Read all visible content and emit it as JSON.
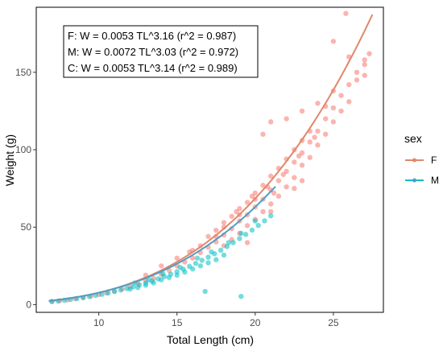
{
  "chart_data": {
    "type": "scatter",
    "title": "",
    "xlabel": "Total Length (cm)",
    "ylabel": "Weight (g)",
    "xlim": [
      6,
      28.2
    ],
    "ylim": [
      -5,
      192
    ],
    "x_ticks": [
      10,
      15,
      20,
      25
    ],
    "y_ticks": [
      0,
      50,
      100,
      150
    ],
    "grid": false,
    "legend": {
      "title": "sex",
      "position": "right",
      "items": [
        {
          "label": "F",
          "color": "#f8766d"
        },
        {
          "label": "M",
          "color": "#00bfc4"
        }
      ]
    },
    "annotations": [
      "F: W = 0.0053 TL^3.16  (r^2 = 0.987)",
      "M: W = 0.0072 TL^3.03  (r^2 = 0.972)",
      "C: W = 0.0053 TL^3.14  (r^2 = 0.989)"
    ],
    "series": [
      {
        "name": "F",
        "color": "#f8766d",
        "fit": {
          "a": 0.0053,
          "b": 3.16,
          "x_range": [
            6.8,
            27.5
          ],
          "color": "#e0876a"
        },
        "points": [
          [
            7,
            2
          ],
          [
            7.5,
            2.5
          ],
          [
            8,
            3
          ],
          [
            8.5,
            3.8
          ],
          [
            9,
            4.5
          ],
          [
            9.5,
            5.5
          ],
          [
            10,
            6.5
          ],
          [
            10.5,
            7.5
          ],
          [
            11,
            8.8
          ],
          [
            11.5,
            10
          ],
          [
            12,
            11.5
          ],
          [
            12.5,
            13.5
          ],
          [
            13,
            15.5
          ],
          [
            13.5,
            17
          ],
          [
            14,
            19.5
          ],
          [
            14.5,
            22
          ],
          [
            15,
            25
          ],
          [
            15.5,
            27.5
          ],
          [
            16,
            30
          ],
          [
            16.5,
            33.5
          ],
          [
            17,
            37
          ],
          [
            17.5,
            40.5
          ],
          [
            18,
            45
          ],
          [
            18.5,
            49
          ],
          [
            19,
            54
          ],
          [
            19.5,
            58
          ],
          [
            20,
            63
          ],
          [
            20.5,
            68
          ],
          [
            21,
            74
          ],
          [
            21.5,
            80
          ],
          [
            22,
            86
          ],
          [
            22.5,
            92
          ],
          [
            23,
            98
          ],
          [
            23.5,
            105
          ],
          [
            24,
            112
          ],
          [
            24.5,
            120
          ],
          [
            25,
            127
          ],
          [
            25.5,
            135
          ],
          [
            26,
            142
          ],
          [
            26.5,
            150
          ],
          [
            27,
            158
          ],
          [
            27.3,
            162
          ],
          [
            17,
            44
          ],
          [
            17.5,
            48
          ],
          [
            18,
            53
          ],
          [
            18.5,
            57
          ],
          [
            19,
            62
          ],
          [
            19.5,
            66
          ],
          [
            20,
            72
          ],
          [
            20.5,
            77
          ],
          [
            21,
            83
          ],
          [
            21.5,
            88
          ],
          [
            22,
            94
          ],
          [
            22.5,
            100
          ],
          [
            23,
            106
          ],
          [
            23.5,
            112
          ],
          [
            18,
            38
          ],
          [
            18.5,
            42
          ],
          [
            19,
            46
          ],
          [
            19.5,
            51
          ],
          [
            20,
            55
          ],
          [
            20.5,
            60
          ],
          [
            21,
            65
          ],
          [
            21.5,
            70
          ],
          [
            22,
            76
          ],
          [
            22.5,
            82
          ],
          [
            23,
            90
          ],
          [
            23.5,
            95
          ],
          [
            24,
            103
          ],
          [
            24.5,
            110
          ],
          [
            25,
            118
          ],
          [
            25.5,
            125
          ],
          [
            26,
            131
          ],
          [
            22,
            120
          ],
          [
            23,
            125
          ],
          [
            21,
            118
          ],
          [
            24,
            130
          ],
          [
            25,
            138
          ],
          [
            26,
            160
          ],
          [
            25,
            170
          ],
          [
            27,
            155
          ],
          [
            25.8,
            188
          ],
          [
            20.5,
            110
          ],
          [
            16,
            35
          ],
          [
            15,
            30
          ],
          [
            14,
            25
          ],
          [
            13,
            19
          ],
          [
            19.5,
            40
          ],
          [
            21,
            60
          ],
          [
            22.5,
            75
          ],
          [
            23,
            80
          ],
          [
            16.5,
            38
          ],
          [
            17.5,
            44
          ],
          [
            18,
            50
          ],
          [
            19,
            58
          ],
          [
            20,
            68
          ],
          [
            20.8,
            76
          ],
          [
            21.8,
            84
          ],
          [
            22.8,
            96
          ],
          [
            23.8,
            108
          ],
          [
            24.5,
            128
          ],
          [
            26.5,
            145
          ],
          [
            27,
            148
          ],
          [
            15.8,
            34
          ],
          [
            19.8,
            70
          ],
          [
            18.8,
            60
          ],
          [
            21.2,
            72
          ]
        ]
      },
      {
        "name": "M",
        "color": "#00bfc4",
        "fit": {
          "a": 0.0072,
          "b": 3.03,
          "x_range": [
            6.8,
            21.3
          ],
          "color": "#4f9ec4"
        },
        "points": [
          [
            7,
            2
          ],
          [
            7.4,
            2.3
          ],
          [
            7.8,
            2.8
          ],
          [
            8.2,
            3.3
          ],
          [
            8.6,
            3.9
          ],
          [
            9,
            4.5
          ],
          [
            9.4,
            5.2
          ],
          [
            9.8,
            5.9
          ],
          [
            10.2,
            6.6
          ],
          [
            10.6,
            7.5
          ],
          [
            11,
            8.4
          ],
          [
            11.4,
            9.4
          ],
          [
            11.8,
            10.4
          ],
          [
            12.2,
            11.5
          ],
          [
            12.6,
            12.7
          ],
          [
            13,
            13.9
          ],
          [
            13.4,
            15.2
          ],
          [
            13.8,
            16.6
          ],
          [
            14.2,
            18.1
          ],
          [
            14.6,
            19.6
          ],
          [
            15,
            21.2
          ],
          [
            15.4,
            22.9
          ],
          [
            15.8,
            24.7
          ],
          [
            16.2,
            26.6
          ],
          [
            16.6,
            28.6
          ],
          [
            17,
            30.6
          ],
          [
            17.4,
            32.8
          ],
          [
            17.8,
            35.1
          ],
          [
            18.2,
            37.5
          ],
          [
            18.6,
            40
          ],
          [
            19,
            42.6
          ],
          [
            19.4,
            45.3
          ],
          [
            19.8,
            48.1
          ],
          [
            20.2,
            51.1
          ],
          [
            20.6,
            54.1
          ],
          [
            21,
            57.3
          ],
          [
            12,
            10
          ],
          [
            12.5,
            11
          ],
          [
            13,
            12.5
          ],
          [
            13.5,
            14
          ],
          [
            14,
            16
          ],
          [
            14.5,
            17.5
          ],
          [
            15,
            19
          ],
          [
            15.5,
            21
          ],
          [
            16,
            23
          ],
          [
            16.5,
            25
          ],
          [
            17,
            27
          ],
          [
            17.5,
            29
          ],
          [
            18,
            32
          ],
          [
            12.3,
            14
          ],
          [
            13.2,
            16
          ],
          [
            14.1,
            20
          ],
          [
            15.2,
            24
          ],
          [
            16.3,
            30
          ],
          [
            17.2,
            34
          ],
          [
            18.3,
            40
          ],
          [
            19.1,
            46
          ],
          [
            20,
            54
          ],
          [
            16.8,
            8.5
          ],
          [
            19.1,
            5.3
          ]
        ]
      }
    ]
  }
}
